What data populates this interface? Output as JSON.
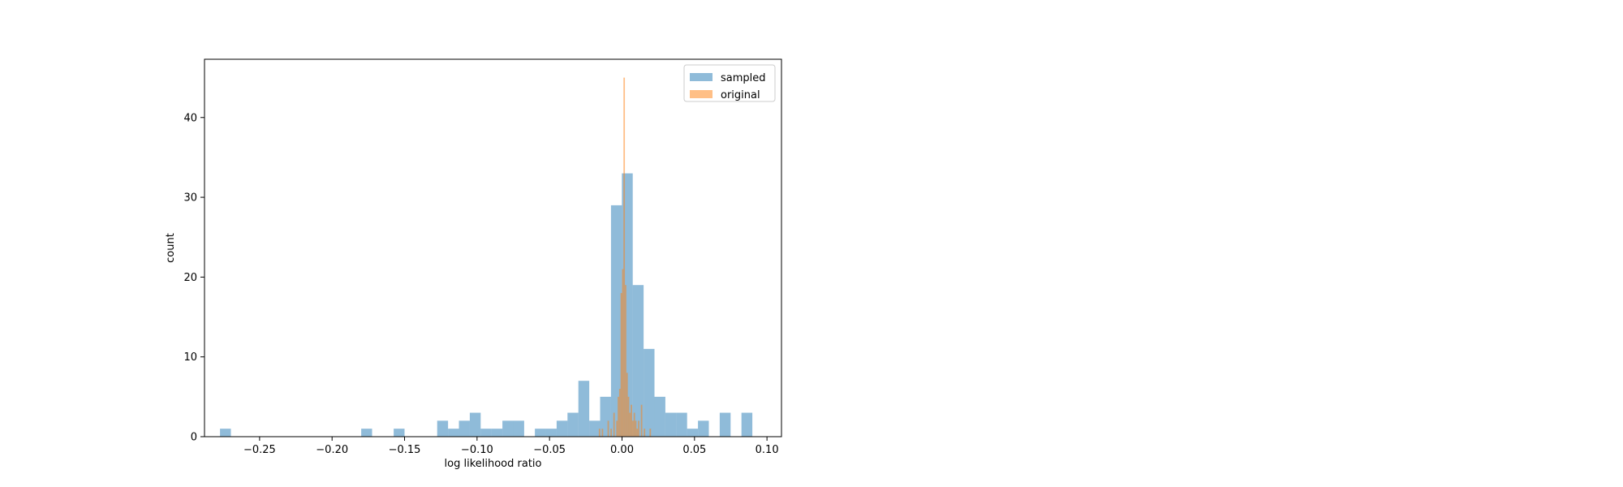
{
  "chart_data": {
    "type": "bar",
    "xlabel": "log likelihood ratio",
    "ylabel": "count",
    "xlim": [
      -0.288,
      0.11
    ],
    "ylim": [
      0,
      47.3
    ],
    "x_ticks": [
      -0.25,
      -0.2,
      -0.15,
      -0.1,
      -0.05,
      0.0,
      0.05,
      0.1
    ],
    "x_tick_labels": [
      "−0.25",
      "−0.20",
      "−0.15",
      "−0.10",
      "−0.05",
      "0.00",
      "0.05",
      "0.10"
    ],
    "y_ticks": [
      0,
      10,
      20,
      30,
      40
    ],
    "y_tick_labels": [
      "0",
      "10",
      "20",
      "30",
      "40"
    ],
    "grid": false,
    "legend_position": "top-right",
    "series": [
      {
        "name": "sampled",
        "color": "#1f77b4",
        "alpha": 0.5,
        "bins": [
          {
            "x0": -0.2773,
            "x1": -0.2698,
            "count": 1
          },
          {
            "x0": -0.1799,
            "x1": -0.1724,
            "count": 1
          },
          {
            "x0": -0.1575,
            "x1": -0.15,
            "count": 1
          },
          {
            "x0": -0.1275,
            "x1": -0.12,
            "count": 2
          },
          {
            "x0": -0.12,
            "x1": -0.1125,
            "count": 1
          },
          {
            "x0": -0.1125,
            "x1": -0.105,
            "count": 2
          },
          {
            "x0": -0.105,
            "x1": -0.0975,
            "count": 3
          },
          {
            "x0": -0.0975,
            "x1": -0.09,
            "count": 1
          },
          {
            "x0": -0.09,
            "x1": -0.0825,
            "count": 1
          },
          {
            "x0": -0.0825,
            "x1": -0.075,
            "count": 2
          },
          {
            "x0": -0.075,
            "x1": -0.0675,
            "count": 2
          },
          {
            "x0": -0.0601,
            "x1": -0.0526,
            "count": 1
          },
          {
            "x0": -0.0526,
            "x1": -0.0451,
            "count": 1
          },
          {
            "x0": -0.0451,
            "x1": -0.0376,
            "count": 2
          },
          {
            "x0": -0.0376,
            "x1": -0.0301,
            "count": 3
          },
          {
            "x0": -0.0301,
            "x1": -0.0226,
            "count": 7
          },
          {
            "x0": -0.0226,
            "x1": -0.0151,
            "count": 2
          },
          {
            "x0": -0.0151,
            "x1": -0.0076,
            "count": 5
          },
          {
            "x0": -0.0076,
            "x1": -0.0001,
            "count": 29
          },
          {
            "x0": -0.0001,
            "x1": 0.0074,
            "count": 33
          },
          {
            "x0": 0.0074,
            "x1": 0.0149,
            "count": 19
          },
          {
            "x0": 0.0149,
            "x1": 0.0224,
            "count": 11
          },
          {
            "x0": 0.0224,
            "x1": 0.0299,
            "count": 5
          },
          {
            "x0": 0.0299,
            "x1": 0.0374,
            "count": 3
          },
          {
            "x0": 0.0374,
            "x1": 0.0449,
            "count": 3
          },
          {
            "x0": 0.0449,
            "x1": 0.0524,
            "count": 1
          },
          {
            "x0": 0.0524,
            "x1": 0.0599,
            "count": 2
          },
          {
            "x0": 0.0674,
            "x1": 0.0749,
            "count": 3
          },
          {
            "x0": 0.0824,
            "x1": 0.0899,
            "count": 3
          }
        ]
      },
      {
        "name": "original",
        "color": "#ff7f0e",
        "alpha": 0.5,
        "bins": [
          {
            "x0": -0.016,
            "x1": -0.015,
            "count": 1
          },
          {
            "x0": -0.014,
            "x1": -0.013,
            "count": 1
          },
          {
            "x0": -0.01,
            "x1": -0.009,
            "count": 2
          },
          {
            "x0": -0.008,
            "x1": -0.007,
            "count": 1
          },
          {
            "x0": -0.006,
            "x1": -0.005,
            "count": 3
          },
          {
            "x0": -0.004,
            "x1": -0.003,
            "count": 2
          },
          {
            "x0": -0.003,
            "x1": -0.002,
            "count": 5
          },
          {
            "x0": -0.002,
            "x1": -0.001,
            "count": 6
          },
          {
            "x0": -0.001,
            "x1": 0.0,
            "count": 18
          },
          {
            "x0": 0.0,
            "x1": 0.001,
            "count": 21
          },
          {
            "x0": 0.001,
            "x1": 0.002,
            "count": 45
          },
          {
            "x0": 0.002,
            "x1": 0.003,
            "count": 19
          },
          {
            "x0": 0.003,
            "x1": 0.004,
            "count": 8
          },
          {
            "x0": 0.004,
            "x1": 0.005,
            "count": 5
          },
          {
            "x0": 0.005,
            "x1": 0.006,
            "count": 3
          },
          {
            "x0": 0.006,
            "x1": 0.007,
            "count": 4
          },
          {
            "x0": 0.007,
            "x1": 0.008,
            "count": 2
          },
          {
            "x0": 0.008,
            "x1": 0.009,
            "count": 3
          },
          {
            "x0": 0.009,
            "x1": 0.01,
            "count": 2
          },
          {
            "x0": 0.01,
            "x1": 0.011,
            "count": 1
          },
          {
            "x0": 0.011,
            "x1": 0.012,
            "count": 2
          },
          {
            "x0": 0.013,
            "x1": 0.014,
            "count": 4
          },
          {
            "x0": 0.015,
            "x1": 0.016,
            "count": 1
          },
          {
            "x0": 0.019,
            "x1": 0.02,
            "count": 1
          }
        ]
      }
    ]
  }
}
